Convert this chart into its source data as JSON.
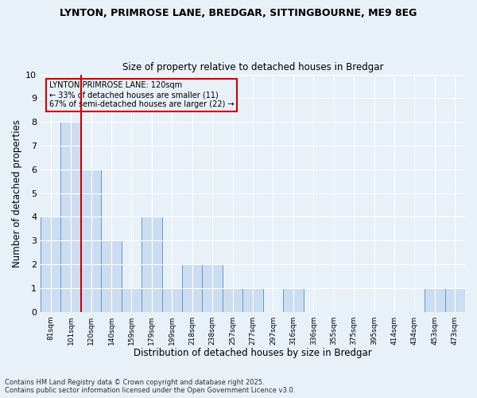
{
  "title_line1": "LYNTON, PRIMROSE LANE, BREDGAR, SITTINGBOURNE, ME9 8EG",
  "title_line2": "Size of property relative to detached houses in Bredgar",
  "categories": [
    "81sqm",
    "101sqm",
    "120sqm",
    "140sqm",
    "159sqm",
    "179sqm",
    "199sqm",
    "218sqm",
    "238sqm",
    "257sqm",
    "277sqm",
    "297sqm",
    "316sqm",
    "336sqm",
    "355sqm",
    "375sqm",
    "395sqm",
    "414sqm",
    "434sqm",
    "453sqm",
    "473sqm"
  ],
  "values": [
    4,
    8,
    6,
    3,
    1,
    4,
    1,
    2,
    2,
    1,
    1,
    0,
    1,
    0,
    0,
    0,
    0,
    0,
    0,
    1,
    1
  ],
  "bar_color": "#ccddf0",
  "bar_edge_color": "#5b9bd5",
  "redline_index": 2,
  "redline_label": "LYNTON PRIMROSE LANE: 120sqm",
  "annotation_line2": "← 33% of detached houses are smaller (11)",
  "annotation_line3": "67% of semi-detached houses are larger (22) →",
  "xlabel": "Distribution of detached houses by size in Bredgar",
  "ylabel": "Number of detached properties",
  "ylim": [
    0,
    10
  ],
  "yticks": [
    0,
    1,
    2,
    3,
    4,
    5,
    6,
    7,
    8,
    9,
    10
  ],
  "background_color": "#e8f0f8",
  "grid_color": "#ffffff",
  "footer_line1": "Contains HM Land Registry data © Crown copyright and database right 2025.",
  "footer_line2": "Contains public sector information licensed under the Open Government Licence v3.0.",
  "annotation_box_color": "#cc0000",
  "redline_color": "#cc0000"
}
